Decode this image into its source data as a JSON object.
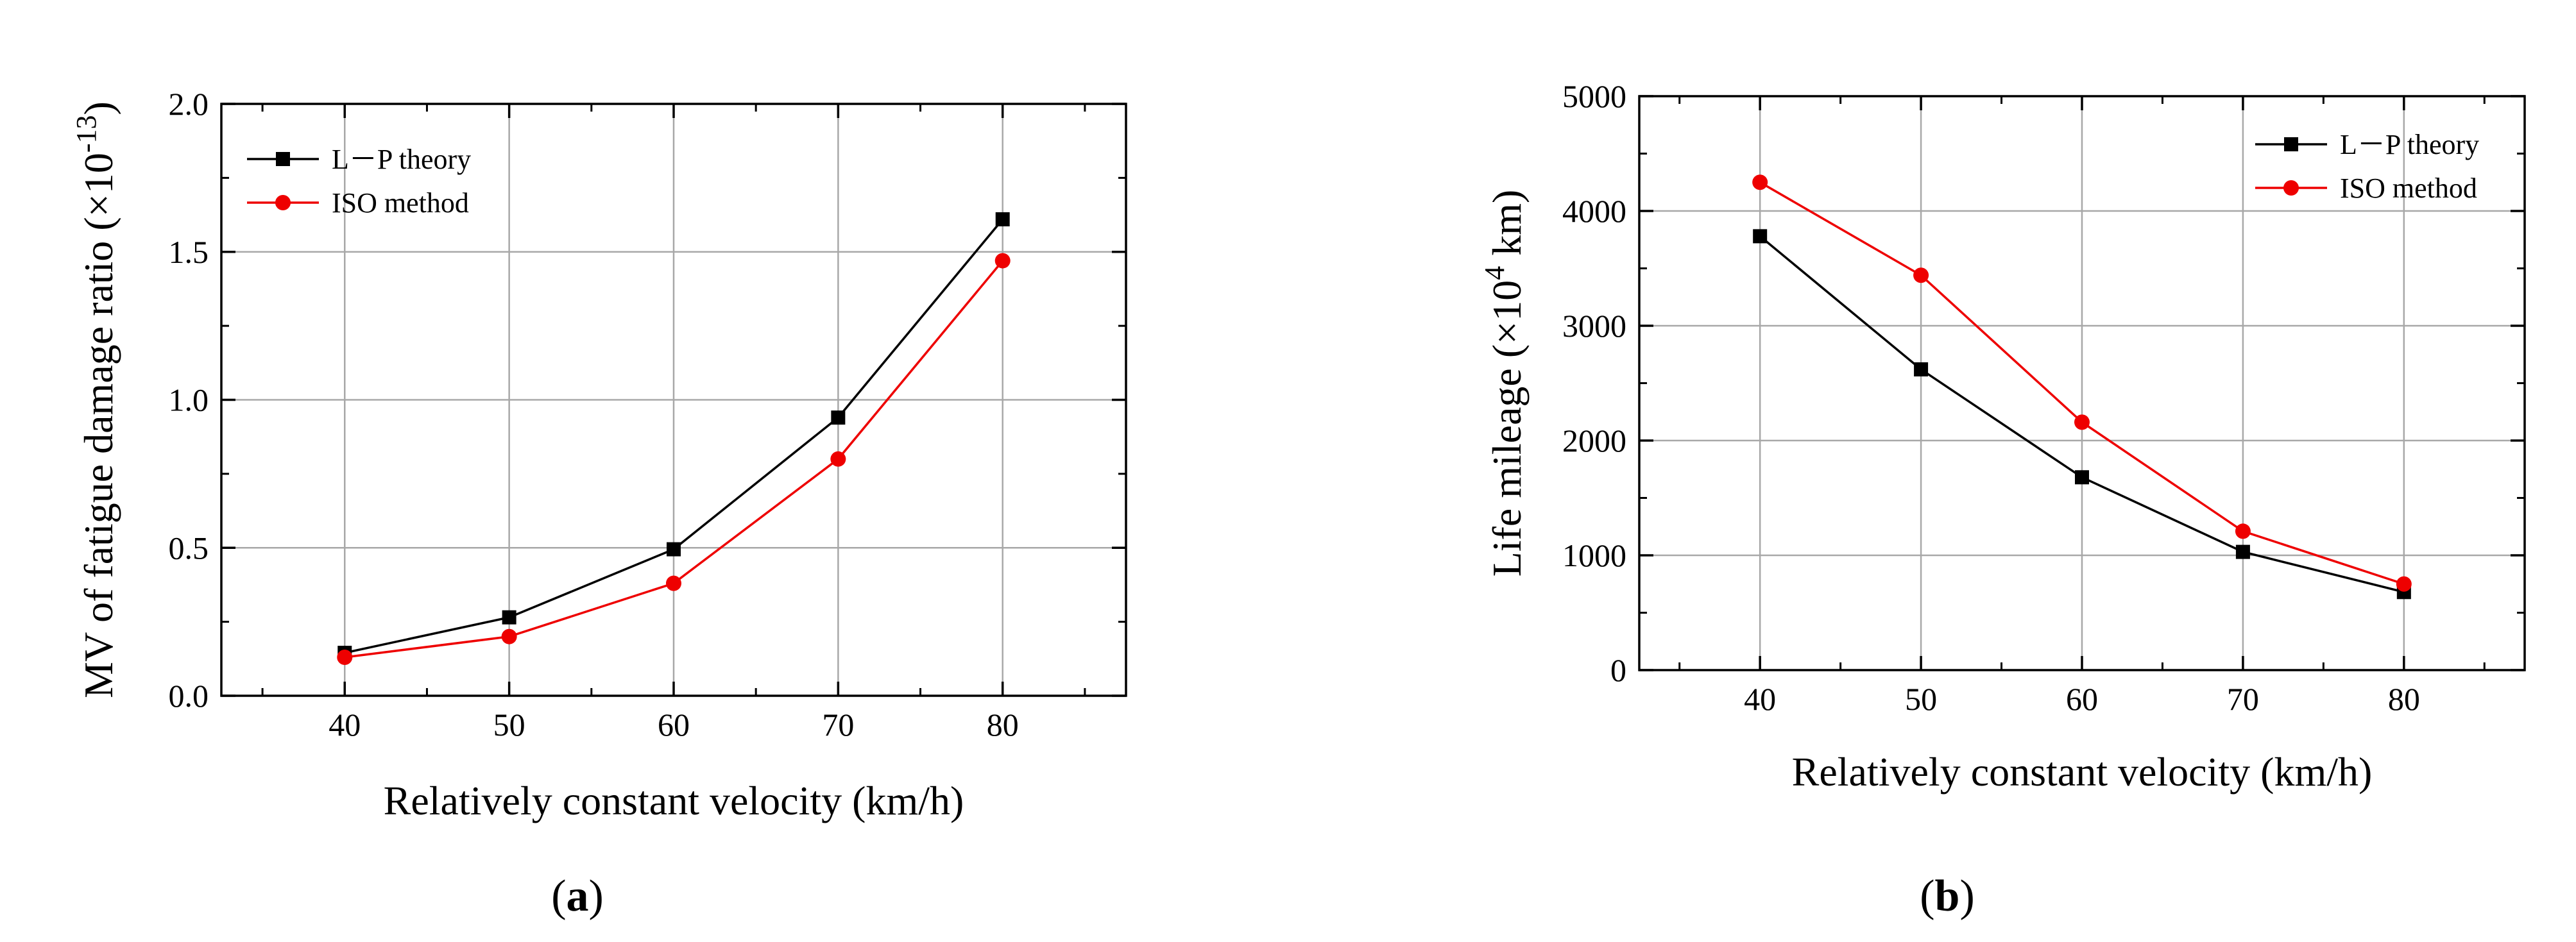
{
  "chart_data": [
    {
      "type": "line",
      "panel_label": "a",
      "xlabel": "Relatively constant velocity (km/h)",
      "ylabel": "MV of fatigue damage ratio (×10",
      "ylabel_exp": "-13",
      "ylabel_end": ")",
      "x": [
        40,
        50,
        60,
        70,
        80
      ],
      "xlim": [
        32.5,
        87.5
      ],
      "ylim": [
        0,
        2.0
      ],
      "xticks": [
        40,
        50,
        60,
        70,
        80
      ],
      "yticks": [
        0,
        0.5,
        1.0,
        1.5,
        2.0
      ],
      "ytick_labels": [
        "0.0",
        "0.5",
        "1.0",
        "1.5",
        "2.0"
      ],
      "xtick_labels": [
        "40",
        "50",
        "60",
        "70",
        "80"
      ],
      "grid": true,
      "legend_position": "top-left",
      "series": [
        {
          "name": "L－P theory",
          "values": [
            0.145,
            0.265,
            0.495,
            0.94,
            1.61
          ],
          "color": "#000000",
          "marker": "square"
        },
        {
          "name": "ISO method",
          "values": [
            0.13,
            0.2,
            0.38,
            0.8,
            1.47
          ],
          "color": "#ee0000",
          "marker": "circle"
        }
      ]
    },
    {
      "type": "line",
      "panel_label": "b",
      "xlabel": "Relatively constant velocity (km/h)",
      "ylabel": "Life mileage (×10",
      "ylabel_exp": "4",
      "ylabel_end": " km)",
      "x": [
        40,
        50,
        60,
        70,
        80
      ],
      "xlim": [
        32.5,
        87.5
      ],
      "ylim": [
        0,
        5000
      ],
      "xticks": [
        40,
        50,
        60,
        70,
        80
      ],
      "yticks": [
        0,
        1000,
        2000,
        3000,
        4000,
        5000
      ],
      "ytick_labels": [
        "0",
        "1000",
        "2000",
        "3000",
        "4000",
        "5000"
      ],
      "xtick_labels": [
        "40",
        "50",
        "60",
        "70",
        "80"
      ],
      "grid": true,
      "legend_position": "top-right",
      "series": [
        {
          "name": "L－P theory",
          "values": [
            3780,
            2620,
            1680,
            1030,
            680
          ],
          "color": "#000000",
          "marker": "square"
        },
        {
          "name": "ISO method",
          "values": [
            4250,
            3440,
            2160,
            1210,
            750
          ],
          "color": "#ee0000",
          "marker": "circle"
        }
      ]
    }
  ]
}
